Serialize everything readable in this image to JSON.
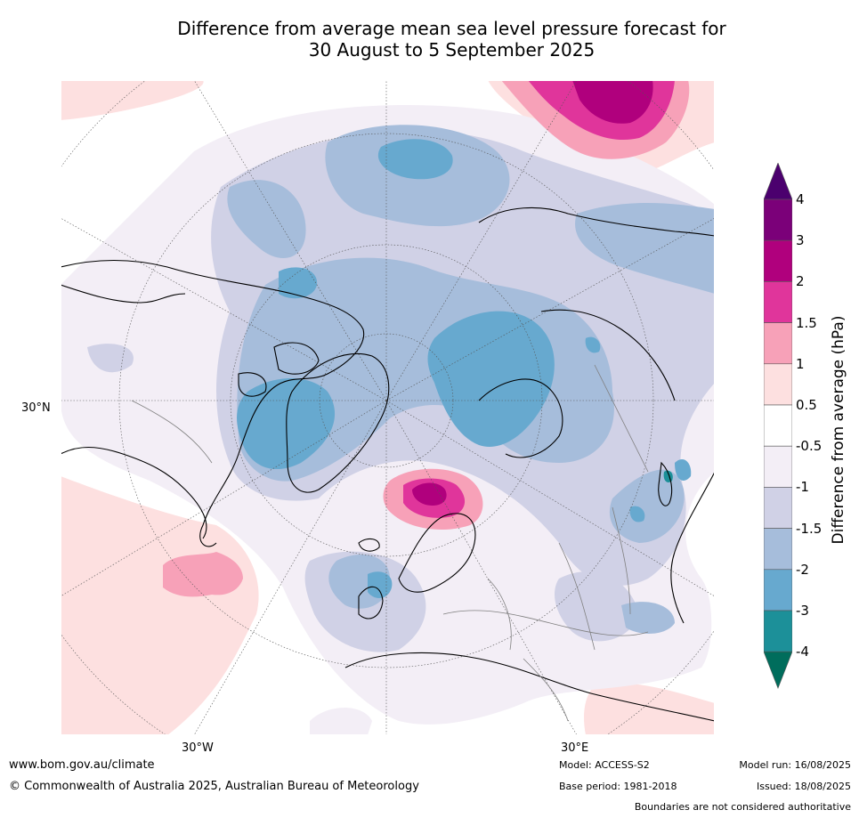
{
  "title": {
    "line1": "Difference from average mean sea level pressure forecast for",
    "line2": "30 August to 5 September 2025"
  },
  "map": {
    "projection": "polar-stereographic (northern hemisphere)",
    "longitude_labels": [
      "30°W",
      "30°E"
    ],
    "latitude_label": "30°N",
    "background_color": "#ffffff",
    "land_outline_color": "#000000",
    "border_color": "#808080"
  },
  "colorbar": {
    "label": "Difference from average (hPa)",
    "tick_labels": [
      "4",
      "3",
      "2",
      "1.5",
      "1",
      "0.5",
      "-0.5",
      "-1",
      "-1.5",
      "-2",
      "-3",
      "-4"
    ],
    "colors_top_to_bottom": [
      "#4b006e",
      "#7b0079",
      "#b0007d",
      "#e0359b",
      "#f7a1b8",
      "#fde0e0",
      "#ffffff",
      "#f3eef6",
      "#d0d1e6",
      "#a6bddb",
      "#67a9cf",
      "#1c9099",
      "#006d5c"
    ]
  },
  "footer": {
    "website": "www.bom.gov.au/climate",
    "copyright": "© Commonwealth of Australia 2025, Australian Bureau of Meteorology",
    "model": "Model: ACCESS-S2",
    "base_period": "Base period: 1981-2018",
    "model_run": "Model run: 16/08/2025",
    "issued": "Issued: 18/08/2025",
    "disclaimer": "Boundaries are not considered authoritative"
  }
}
